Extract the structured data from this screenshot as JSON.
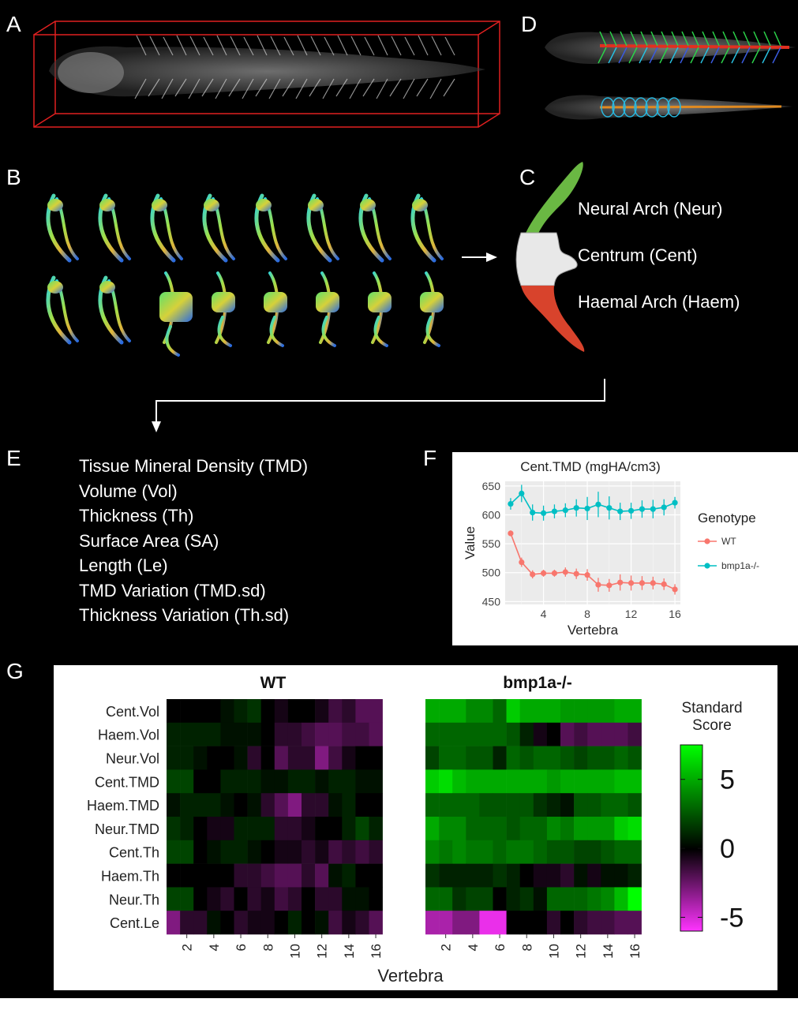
{
  "panels": {
    "a": "A",
    "b": "B",
    "c": "C",
    "d": "D",
    "e": "E",
    "f": "F",
    "g": "G"
  },
  "panel_c": {
    "labels": [
      "Neural Arch (Neur)",
      "Centrum (Cent)",
      "Haemal Arch (Haem)"
    ]
  },
  "panel_e": {
    "items": [
      "Tissue Mineral Density (TMD)",
      "Volume (Vol)",
      "Thickness (Th)",
      "Surface Area (SA)",
      "Length (Le)",
      "TMD Variation (TMD.sd)",
      "Thickness Variation (Th.sd)"
    ]
  },
  "colors": {
    "background": "#000000",
    "wt": "#f8766d",
    "bmp1a": "#00bfc4",
    "neural": "#6ab843",
    "haemal": "#d8432c",
    "heat_high": "#00ff00",
    "heat_low": "#ff33ff",
    "box_red": "#e02020"
  },
  "chart_data": [
    {
      "type": "line",
      "title": "Cent.TMD (mgHA/cm3)",
      "xlabel": "Vertebra",
      "ylabel": "Value",
      "xlim": [
        0.5,
        16.5
      ],
      "ylim": [
        445,
        658
      ],
      "xticks": [
        4,
        8,
        12,
        16
      ],
      "yticks": [
        450,
        500,
        550,
        600,
        650
      ],
      "legend_title": "Genotype",
      "legend_position": "right",
      "x": [
        1,
        2,
        3,
        4,
        5,
        6,
        7,
        8,
        9,
        10,
        11,
        12,
        13,
        14,
        15,
        16
      ],
      "series": [
        {
          "name": "WT",
          "values": [
            568,
            518,
            497,
            499,
            499,
            501,
            498,
            496,
            479,
            478,
            483,
            482,
            482,
            482,
            480,
            471
          ],
          "err": [
            5,
            8,
            7,
            6,
            6,
            8,
            9,
            10,
            12,
            11,
            14,
            13,
            12,
            11,
            10,
            9
          ]
        },
        {
          "name": "bmp1a-/-",
          "values": [
            619,
            637,
            604,
            603,
            606,
            608,
            612,
            611,
            618,
            612,
            606,
            607,
            610,
            610,
            613,
            621
          ],
          "err": [
            10,
            15,
            14,
            13,
            12,
            12,
            15,
            20,
            22,
            20,
            15,
            14,
            15,
            16,
            14,
            10
          ]
        }
      ]
    },
    {
      "type": "heatmap",
      "titles": [
        "WT",
        "bmp1a-/-"
      ],
      "rows": [
        "Cent.Vol",
        "Haem.Vol",
        "Neur.Vol",
        "Cent.TMD",
        "Haem.TMD",
        "Neur.TMD",
        "Cent.Th",
        "Haem.Th",
        "Neur.Th",
        "Cent.Le"
      ],
      "x": [
        1,
        2,
        3,
        4,
        5,
        6,
        7,
        8,
        9,
        10,
        11,
        12,
        13,
        14,
        15,
        16
      ],
      "xticks": [
        2,
        4,
        6,
        8,
        10,
        12,
        14,
        16
      ],
      "xlabel": "Vertebra",
      "legend_title": [
        "Standard",
        "Score"
      ],
      "legend_ticks": [
        5,
        0,
        -5
      ],
      "range": [
        -6,
        7.5
      ],
      "values_wt": [
        [
          0,
          0,
          0,
          0,
          0.5,
          1,
          1.5,
          0,
          -0.5,
          0,
          0,
          -0.5,
          -1.5,
          -1,
          -2,
          -2
        ],
        [
          1,
          1,
          1,
          1,
          0.5,
          0.5,
          0.5,
          0,
          -1,
          -1,
          -1.5,
          -2,
          -2,
          -1.5,
          -1.5,
          -2
        ],
        [
          1,
          1,
          0.5,
          0,
          0,
          0.5,
          -1,
          0,
          -2,
          -1,
          -1,
          -3,
          -1.5,
          -0.5,
          0,
          0
        ],
        [
          2,
          2,
          0,
          0,
          1,
          1,
          1,
          0.5,
          0.5,
          1,
          1,
          0.5,
          1,
          1,
          0.5,
          0.5
        ],
        [
          0.5,
          1,
          1,
          1,
          0.5,
          0,
          0.5,
          -1,
          -2,
          -3,
          -1,
          -1,
          0.5,
          1,
          0,
          0
        ],
        [
          1.5,
          1,
          0,
          -0.5,
          -0.5,
          1,
          1,
          1,
          -1,
          -1,
          -0.5,
          0,
          0,
          1,
          2,
          1
        ],
        [
          2,
          2,
          0,
          0.5,
          1,
          1,
          0.5,
          0,
          -0.5,
          -0.5,
          -1,
          -0.5,
          -1.5,
          -1,
          -1.5,
          -1
        ],
        [
          0,
          0,
          0,
          0,
          0,
          -1,
          -1,
          -1.5,
          -2,
          -2,
          -1,
          -2,
          0.5,
          1,
          0,
          0
        ],
        [
          2,
          2,
          0,
          -0.5,
          -1,
          0,
          -1,
          -0.5,
          -1.5,
          -1,
          0,
          -1,
          -1,
          0.5,
          0.5,
          0
        ],
        [
          -3,
          -1,
          -1,
          0.5,
          0,
          -1,
          -0.5,
          -0.5,
          0,
          1,
          0,
          0.5,
          -1.5,
          -0.5,
          -1,
          -2
        ]
      ],
      "values_mut": [
        [
          5,
          5,
          5,
          4,
          4,
          3,
          6,
          5,
          5,
          5,
          4.5,
          4.5,
          4.5,
          4.5,
          5,
          5
        ],
        [
          3,
          3,
          3,
          3,
          3,
          3,
          2.5,
          1,
          -0.5,
          0,
          -2,
          -1.5,
          -2,
          -2,
          -2,
          -1.5
        ],
        [
          2,
          3,
          3,
          2.5,
          2.5,
          1,
          3,
          2.5,
          3,
          3,
          2.5,
          2,
          2.5,
          2.5,
          3,
          2.5
        ],
        [
          6,
          6.5,
          5.5,
          5,
          5,
          5,
          5,
          5,
          5,
          4.5,
          5,
          5,
          5,
          5,
          5.5,
          5.5
        ],
        [
          3,
          3,
          3,
          3,
          2.5,
          2.5,
          2.5,
          2.5,
          1.5,
          1,
          0.5,
          2.5,
          2.5,
          3,
          3,
          2.5
        ],
        [
          5,
          4,
          4,
          3,
          3,
          3,
          2.5,
          3,
          3,
          4,
          3.5,
          4.5,
          4.5,
          4.5,
          6,
          6.5
        ],
        [
          4,
          3.5,
          4,
          3.5,
          3.5,
          3,
          3.5,
          3.5,
          3,
          2.5,
          2.5,
          2,
          2,
          2.5,
          3,
          3
        ],
        [
          1.5,
          1,
          1,
          1,
          1,
          1.5,
          1,
          0,
          -0.5,
          -0.5,
          -1,
          0.5,
          -0.5,
          0.5,
          0.5,
          1
        ],
        [
          3,
          3,
          1.5,
          2,
          2,
          0,
          1,
          1.5,
          0.5,
          3,
          3,
          3,
          3.5,
          4,
          5.5,
          7.5
        ],
        [
          -4,
          -4,
          -3,
          -3,
          -5.5,
          -5.5,
          0,
          0,
          0,
          -1,
          0,
          -1,
          -1.5,
          -1.5,
          -2,
          -2
        ]
      ]
    }
  ]
}
